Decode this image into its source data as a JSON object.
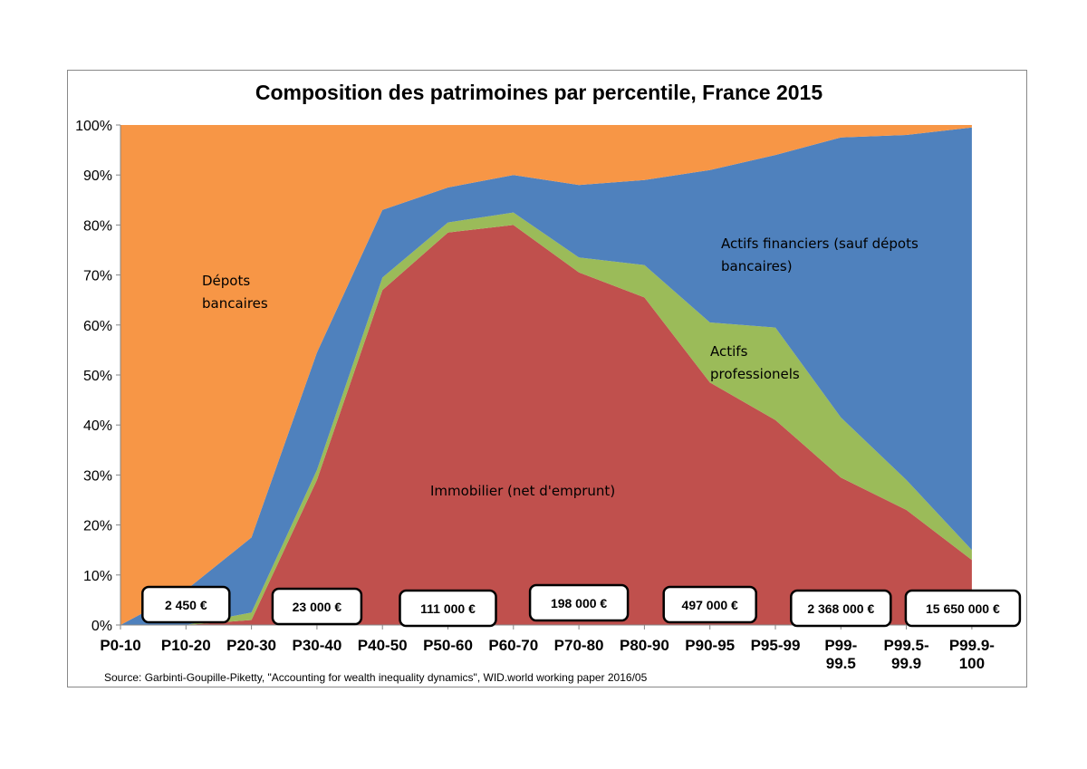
{
  "chart_data": {
    "type": "area",
    "title": "Composition des patrimoines par percentile, France 2015",
    "stacked": true,
    "percent": true,
    "ylim": [
      0,
      100
    ],
    "yticks": [
      0,
      10,
      20,
      30,
      40,
      50,
      60,
      70,
      80,
      90,
      100
    ],
    "ytick_labels": [
      "0%",
      "10%",
      "20%",
      "30%",
      "40%",
      "50%",
      "60%",
      "70%",
      "80%",
      "90%",
      "100%"
    ],
    "categories": [
      "P0-10",
      "P10-20",
      "P20-30",
      "P30-40",
      "P40-50",
      "P50-60",
      "P60-70",
      "P70-80",
      "P80-90",
      "P90-95",
      "P95-99",
      "P99-99.5",
      "P99.5-99.9",
      "P99.9-100"
    ],
    "category_lines": [
      [
        "P0-10"
      ],
      [
        "P10-20"
      ],
      [
        "P20-30"
      ],
      [
        "P30-40"
      ],
      [
        "P40-50"
      ],
      [
        "P50-60"
      ],
      [
        "P60-70"
      ],
      [
        "P70-80"
      ],
      [
        "P80-90"
      ],
      [
        "P90-95"
      ],
      [
        "P95-99"
      ],
      [
        "P99-",
        "99.5"
      ],
      [
        "P99.5-",
        "99.9"
      ],
      [
        "P99.9-",
        "100"
      ]
    ],
    "series": [
      {
        "name": "Immobilier (net d'emprunt)",
        "color": "#c0504d",
        "values": [
          0,
          0,
          1,
          29,
          67,
          78.5,
          80,
          70.5,
          65.5,
          48.5,
          41,
          29.5,
          23,
          13
        ]
      },
      {
        "name": "Actifs professionels",
        "color": "#9bbb59",
        "values": [
          0,
          0,
          1.5,
          2,
          2.5,
          2,
          2.5,
          3,
          6.5,
          12,
          18.5,
          12,
          6,
          2
        ]
      },
      {
        "name": "Actifs financiers (sauf dépots bancaires)",
        "color": "#4f81bd",
        "values": [
          0,
          7,
          15,
          23.5,
          13.5,
          7,
          7.5,
          14.5,
          17,
          30.5,
          34.5,
          56,
          69,
          84.5
        ]
      },
      {
        "name": "Dépots bancaires",
        "color": "#f79646",
        "values": [
          100,
          93,
          82.5,
          45.5,
          17,
          12.5,
          10,
          12,
          11,
          9,
          6,
          2.5,
          2,
          0.5
        ]
      }
    ],
    "annotations": [
      {
        "lines": [
          "Dépots",
          "bancaires"
        ]
      },
      {
        "lines": [
          "Actifs financiers (sauf dépots",
          "bancaires)"
        ]
      },
      {
        "lines": [
          "Actifs",
          "professionels"
        ]
      },
      {
        "lines": [
          "Immobilier (net d'emprunt)"
        ]
      }
    ],
    "average_wealth_boxes": [
      {
        "category": "P10-20",
        "text": "2 450 €"
      },
      {
        "category": "P30-40",
        "text": "23 000 €"
      },
      {
        "category": "P50-60",
        "text": "111 000 €"
      },
      {
        "category": "P70-80",
        "text": "198 000 €"
      },
      {
        "category": "P90-95",
        "text": "497 000 €"
      },
      {
        "category": "P99-99.5",
        "text": "2 368 000 €"
      },
      {
        "category": "P99.9-100",
        "text": "15 650 000 €"
      }
    ],
    "source": "Source: Garbinti-Goupille-Piketty, \"Accounting for wealth inequality dynamics\", WID.world working paper 2016/05"
  }
}
